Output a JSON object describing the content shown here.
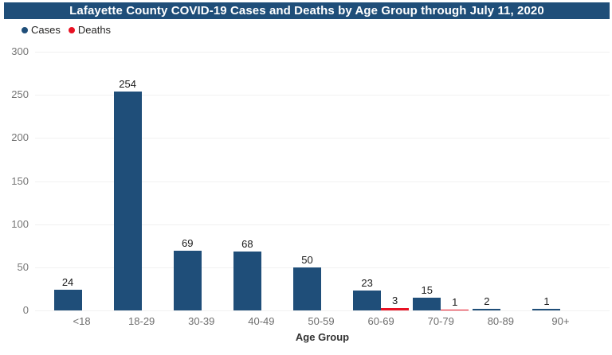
{
  "title": "Lafayette County COVID-19 Cases and Deaths by Age Group through July 11, 2020",
  "legend": {
    "cases_label": "Cases",
    "deaths_label": "Deaths"
  },
  "colors": {
    "title_bar_bg": "#1F4E79",
    "title_text": "#FFFFFF",
    "cases": "#1F4E79",
    "deaths": "#E81123",
    "axis_text": "#767676",
    "category_text": "#6E6E6E",
    "data_label_text": "#1A1A1A",
    "gridline": "#F1F1F1"
  },
  "chart_data": {
    "type": "bar",
    "title": "Lafayette County COVID-19 Cases and Deaths by Age Group through July 11, 2020",
    "xlabel": "Age Group",
    "ylabel": "",
    "ylim": [
      0,
      300
    ],
    "yticks": [
      0,
      50,
      100,
      150,
      200,
      250,
      300
    ],
    "grid": true,
    "legend_position": "top-left",
    "data_labels": true,
    "categories": [
      "<18",
      "18-29",
      "30-39",
      "40-49",
      "50-59",
      "60-69",
      "70-79",
      "80-89",
      "90+"
    ],
    "series": [
      {
        "name": "Cases",
        "color": "#1F4E79",
        "values": [
          24,
          254,
          69,
          68,
          50,
          23,
          15,
          2,
          1
        ]
      },
      {
        "name": "Deaths",
        "color": "#E81123",
        "values": [
          0,
          0,
          0,
          0,
          0,
          3,
          1,
          0,
          0
        ],
        "show_zero": false
      }
    ]
  }
}
